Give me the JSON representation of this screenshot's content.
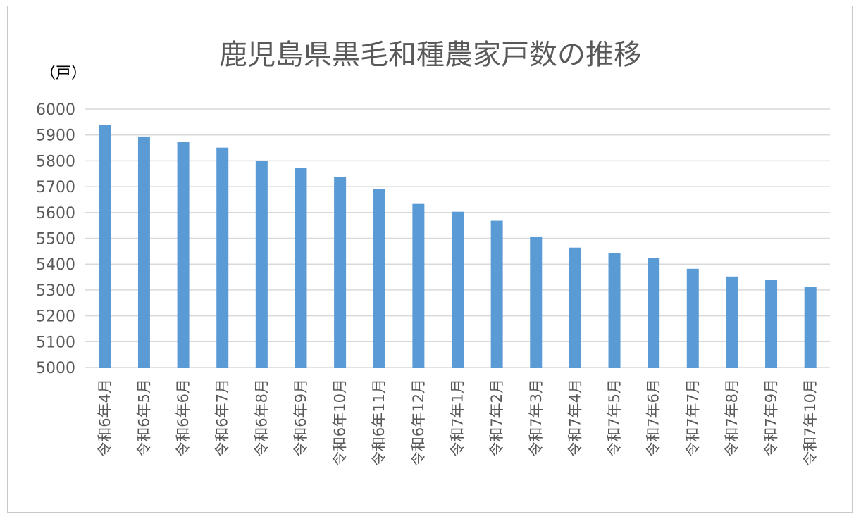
{
  "chart_data": {
    "type": "bar",
    "title": "鹿児島県黒毛和種農家戸数の推移",
    "ylabel": "（戸）",
    "xlabel": "",
    "ylim": [
      5000,
      6000
    ],
    "yticks": [
      5000,
      5100,
      5200,
      5300,
      5400,
      5500,
      5600,
      5700,
      5800,
      5900,
      6000
    ],
    "grid": true,
    "legend": "none",
    "bar_color": "#5b9bd5",
    "categories": [
      "令和6年4月",
      "令和6年5月",
      "令和6年6月",
      "令和6年7月",
      "令和6年8月",
      "令和6年9月",
      "令和6年10月",
      "令和6年11月",
      "令和6年12月",
      "令和7年1月",
      "令和7年2月",
      "令和7年3月",
      "令和7年4月",
      "令和7年5月",
      "令和7年6月",
      "令和7年7月",
      "令和7年8月",
      "令和7年9月",
      "令和7年10月"
    ],
    "values": [
      5938,
      5894,
      5872,
      5851,
      5799,
      5773,
      5738,
      5690,
      5633,
      5603,
      5568,
      5507,
      5464,
      5443,
      5425,
      5382,
      5352,
      5339,
      5313
    ]
  }
}
